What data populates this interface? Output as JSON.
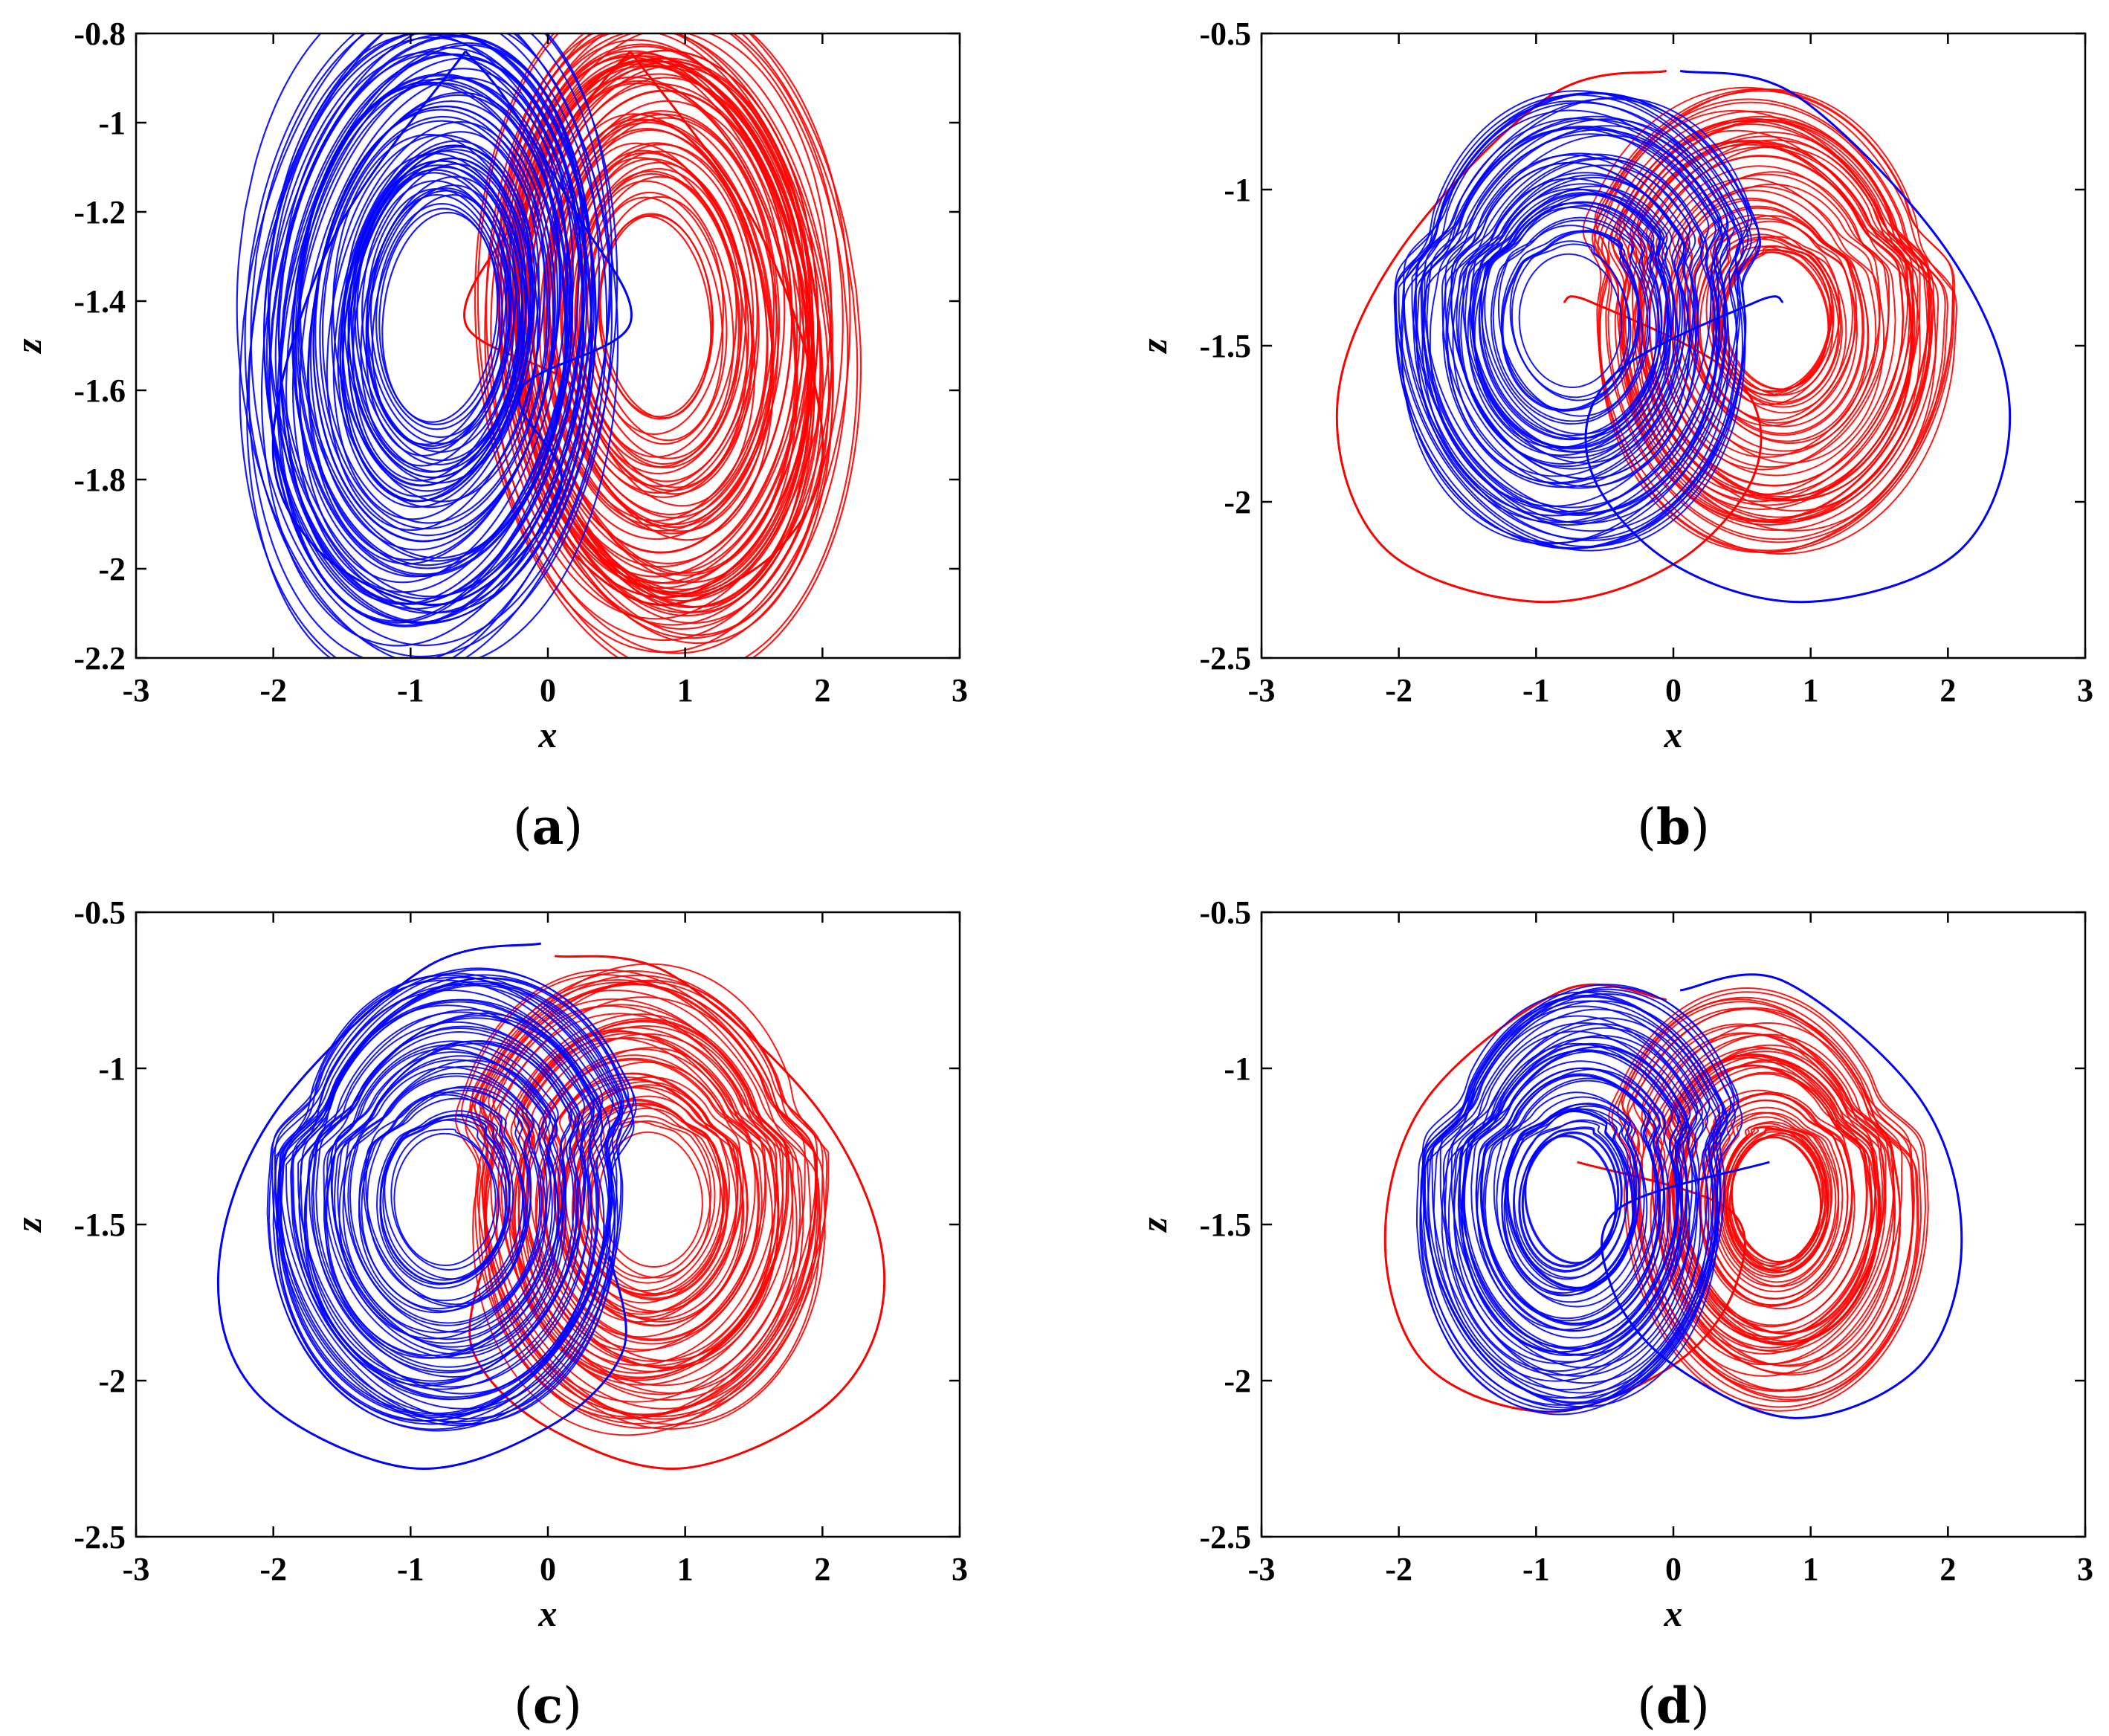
{
  "chart_data": [
    {
      "type": "line",
      "panel_label": "(a)",
      "panel_letter": "a",
      "xlabel": "x",
      "ylabel": "z",
      "xlim": [
        -3,
        3
      ],
      "ylim": [
        -2.2,
        -0.8
      ],
      "xticks": [
        -3,
        -2,
        -1,
        0,
        1,
        2,
        3
      ],
      "yticks": [
        -2.2,
        -2,
        -1.8,
        -1.6,
        -1.4,
        -1.2,
        -1,
        -0.8
      ],
      "xtick_labels": [
        "-3",
        "-2",
        "-1",
        "0",
        "1",
        "2",
        "3"
      ],
      "ytick_labels": [
        "-2.2",
        "-2",
        "-1.8",
        "-1.6",
        "-1.4",
        "-1.2",
        "-1",
        "-0.8"
      ],
      "grid": false,
      "series": [
        {
          "color": "#ff0000",
          "x": [
            0.6,
            1.55,
            2.0,
            1.7,
            0.9,
            0.3,
            -0.1,
            0.2,
            -0.6,
            -0.2,
            0.3,
            0.6
          ],
          "y": [
            -0.84,
            -1.25,
            -1.7,
            -1.95,
            -2.08,
            -2.0,
            -1.8,
            -1.6,
            -1.45,
            -1.2,
            -0.95,
            -0.84
          ]
        },
        {
          "color": "#0000ff",
          "x": [
            -0.6,
            -1.55,
            -2.0,
            -1.7,
            -0.9,
            -0.3,
            0.1,
            -0.2,
            0.6,
            0.2,
            -0.3,
            -0.6
          ],
          "y": [
            -0.84,
            -1.25,
            -1.7,
            -1.95,
            -2.08,
            -2.0,
            -1.8,
            -1.6,
            -1.45,
            -1.2,
            -0.95,
            -0.84
          ]
        }
      ]
    },
    {
      "type": "line",
      "panel_label": "(b)",
      "panel_letter": "b",
      "xlabel": "x",
      "ylabel": "z",
      "xlim": [
        -3,
        3
      ],
      "ylim": [
        -2.5,
        -0.5
      ],
      "xticks": [
        -3,
        -2,
        -1,
        0,
        1,
        2,
        3
      ],
      "yticks": [
        -2.5,
        -2,
        -1.5,
        -1,
        -0.5
      ],
      "xtick_labels": [
        "-3",
        "-2",
        "-1",
        "0",
        "1",
        "2",
        "3"
      ],
      "ytick_labels": [
        "-2.5",
        "-2",
        "-1.5",
        "-1",
        "-0.5"
      ],
      "grid": false,
      "series": [
        {
          "color": "#ff0000",
          "x": [
            -0.05,
            -0.9,
            -2.0,
            -2.45,
            -2.1,
            -1.0,
            0.0,
            0.6,
            0.45,
            -0.6,
            -0.8
          ],
          "y": [
            -0.62,
            -0.7,
            -1.2,
            -1.7,
            -2.15,
            -2.32,
            -2.2,
            -1.9,
            -1.6,
            -1.36,
            -1.36
          ]
        },
        {
          "color": "#0000ff",
          "x": [
            0.05,
            0.9,
            2.0,
            2.45,
            2.1,
            1.0,
            0.0,
            -0.6,
            -0.45,
            0.6,
            0.8
          ],
          "y": [
            -0.62,
            -0.7,
            -1.2,
            -1.7,
            -2.15,
            -2.32,
            -2.2,
            -1.9,
            -1.6,
            -1.36,
            -1.36
          ]
        }
      ]
    },
    {
      "type": "line",
      "panel_label": "(c)",
      "panel_letter": "c",
      "xlabel": "x",
      "ylabel": "z",
      "xlim": [
        -3,
        3
      ],
      "ylim": [
        -2.5,
        -0.5
      ],
      "xticks": [
        -3,
        -2,
        -1,
        0,
        1,
        2,
        3
      ],
      "yticks": [
        -2.5,
        -2,
        -1.5,
        -1,
        -0.5
      ],
      "xtick_labels": [
        "-3",
        "-2",
        "-1",
        "0",
        "1",
        "2",
        "3"
      ],
      "ytick_labels": [
        "-2.5",
        "-2",
        "-1.5",
        "-1",
        "-0.5"
      ],
      "grid": false,
      "series": [
        {
          "color": "#ff0000",
          "x": [
            0.05,
            0.9,
            2.0,
            2.45,
            2.1,
            1.0,
            0.0,
            -0.55,
            -0.45
          ],
          "y": [
            -0.64,
            -0.7,
            -1.15,
            -1.65,
            -2.05,
            -2.28,
            -2.15,
            -1.9,
            -1.6
          ]
        },
        {
          "color": "#0000ff",
          "x": [
            -0.05,
            -0.9,
            -2.0,
            -2.4,
            -2.1,
            -1.0,
            0.0,
            0.55,
            0.45
          ],
          "y": [
            -0.6,
            -0.68,
            -1.15,
            -1.65,
            -2.05,
            -2.28,
            -2.15,
            -1.9,
            -1.6
          ]
        }
      ]
    },
    {
      "type": "line",
      "panel_label": "(d)",
      "panel_letter": "d",
      "xlabel": "x",
      "ylabel": "z",
      "xlim": [
        -3,
        3
      ],
      "ylim": [
        -2.5,
        -0.5
      ],
      "xticks": [
        -3,
        -2,
        -1,
        0,
        1,
        2,
        3
      ],
      "yticks": [
        -2.5,
        -2,
        -1.5,
        -1,
        -0.5
      ],
      "xtick_labels": [
        "-3",
        "-2",
        "-1",
        "0",
        "1",
        "2",
        "3"
      ],
      "ytick_labels": [
        "-2.5",
        "-2",
        "-1.5",
        "-1",
        "-0.5"
      ],
      "grid": false,
      "series": [
        {
          "color": "#ff0000",
          "x": [
            -0.05,
            -0.8,
            -1.8,
            -2.1,
            -1.8,
            -0.9,
            0.0,
            0.45,
            0.4,
            -0.7
          ],
          "y": [
            -0.78,
            -0.75,
            -1.1,
            -1.55,
            -1.95,
            -2.1,
            -1.95,
            -1.7,
            -1.45,
            -1.3
          ]
        },
        {
          "color": "#0000ff",
          "x": [
            0.05,
            0.8,
            1.8,
            2.1,
            1.8,
            0.9,
            0.0,
            -0.45,
            -0.4,
            0.7
          ],
          "y": [
            -0.75,
            -0.72,
            -1.1,
            -1.55,
            -1.95,
            -2.12,
            -1.95,
            -1.7,
            -1.45,
            -1.3
          ]
        }
      ]
    }
  ]
}
